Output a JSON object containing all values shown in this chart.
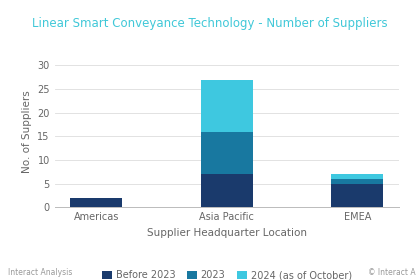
{
  "title": "Linear Smart Conveyance Technology - Number of Suppliers",
  "xlabel": "Supplier Headquarter Location",
  "ylabel": "No. of Suppliers",
  "categories": [
    "Americas",
    "Asia Pacific",
    "EMEA"
  ],
  "before_2023": [
    2,
    7,
    5
  ],
  "in_2023": [
    0,
    9,
    1
  ],
  "in_2024": [
    0,
    11,
    1
  ],
  "color_before": "#1a3a6c",
  "color_2023": "#1878a0",
  "color_2024": "#3ec8e0",
  "ylim": [
    0,
    32
  ],
  "yticks": [
    0,
    5,
    10,
    15,
    20,
    25,
    30
  ],
  "legend_labels": [
    "Before 2023",
    "2023",
    "2024 (as of October)"
  ],
  "background_color": "#ffffff",
  "title_color": "#40c8d8",
  "axis_label_color": "#666666",
  "tick_color": "#666666",
  "grid_color": "#dddddd",
  "footer_left": "Interact Analysis",
  "footer_right": "© Interact A"
}
